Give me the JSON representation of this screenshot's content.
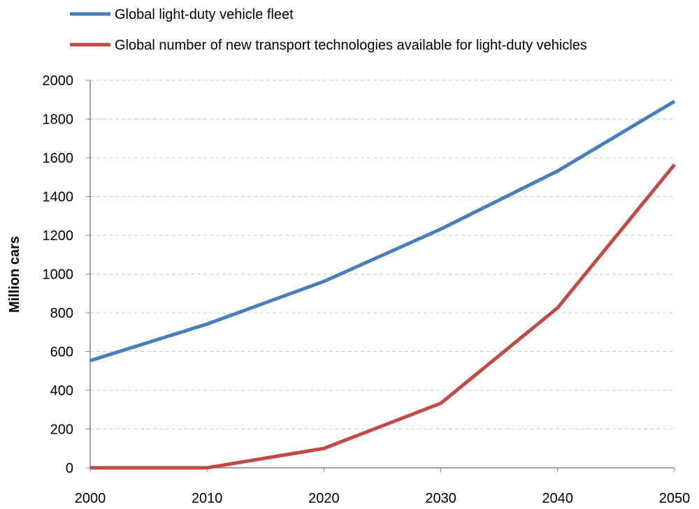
{
  "chart_data": {
    "type": "line",
    "title": "",
    "xlabel": "",
    "ylabel": "Million cars",
    "x": [
      2000,
      2010,
      2020,
      2030,
      2040,
      2050
    ],
    "xlim": [
      2000,
      2050
    ],
    "ylim": [
      0,
      2000
    ],
    "x_ticks": [
      "2000",
      "2010",
      "2020",
      "2030",
      "2040",
      "2050"
    ],
    "y_ticks": [
      "0",
      "200",
      "400",
      "600",
      "800",
      "1000",
      "1200",
      "1400",
      "1600",
      "1800",
      "2000"
    ],
    "grid": "horizontal dashed",
    "legend_position": "top",
    "series": [
      {
        "name": "Global light-duty vehicle fleet",
        "color": "#4A7EBB",
        "values": [
          553,
          742,
          962,
          1232,
          1532,
          1892
        ]
      },
      {
        "name": "Global number of new transport technologies available for light-duty vehicles",
        "color": "#BE4B48",
        "values": [
          0,
          0,
          100,
          333,
          826,
          1565
        ]
      }
    ]
  }
}
